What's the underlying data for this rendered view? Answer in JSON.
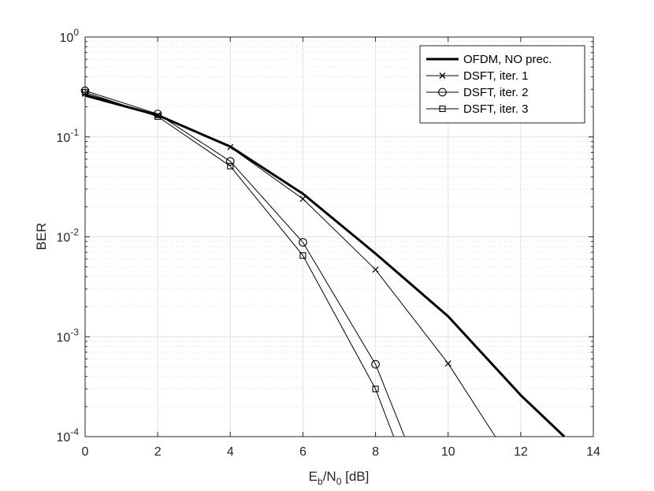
{
  "chart_data": {
    "type": "line",
    "xlabel": {
      "main": "E",
      "sub1": "b",
      "mid": "/N",
      "sub2": "0",
      "tail": " [dB]"
    },
    "ylabel": "BER",
    "xlim": [
      0,
      14
    ],
    "ylim": [
      0.0001,
      1
    ],
    "yscale": "log",
    "grid": true,
    "minor_grid": true,
    "legend_position": "top-right",
    "x_ticks": [
      "0",
      "2",
      "4",
      "6",
      "8",
      "10",
      "12",
      "14"
    ],
    "y_ticks": [
      {
        "base": "10",
        "exp": "0"
      },
      {
        "base": "10",
        "exp": "-1"
      },
      {
        "base": "10",
        "exp": "-2"
      },
      {
        "base": "10",
        "exp": "-3"
      },
      {
        "base": "10",
        "exp": "-4"
      }
    ],
    "series": [
      {
        "name": "OFDM, NO prec.",
        "marker": "none",
        "line_width": "thick",
        "color": "#000000",
        "x": [
          0,
          2,
          4,
          6,
          8,
          10,
          12,
          13.2
        ],
        "y": [
          0.26,
          0.165,
          0.08,
          0.027,
          0.0068,
          0.0016,
          0.00026,
          0.0001
        ]
      },
      {
        "name": "DSFT, iter. 1",
        "marker": "x",
        "line_width": "thin",
        "color": "#000000",
        "x": [
          0,
          2,
          4,
          6,
          8,
          10,
          11.3
        ],
        "y": [
          0.27,
          0.165,
          0.079,
          0.024,
          0.0047,
          0.00054,
          0.0001
        ]
      },
      {
        "name": "DSFT, iter. 2",
        "marker": "circle",
        "line_width": "thin",
        "color": "#000000",
        "x": [
          0,
          2,
          4,
          6,
          8,
          8.8
        ],
        "y": [
          0.29,
          0.17,
          0.057,
          0.0088,
          0.00053,
          0.0001
        ]
      },
      {
        "name": "DSFT, iter. 3",
        "marker": "square",
        "line_width": "thin",
        "color": "#000000",
        "x": [
          0,
          2,
          4,
          6,
          8,
          8.5
        ],
        "y": [
          0.28,
          0.16,
          0.051,
          0.0065,
          0.0003,
          0.0001
        ]
      }
    ],
    "marker_x": [
      0,
      2,
      4,
      6,
      8,
      10
    ]
  }
}
